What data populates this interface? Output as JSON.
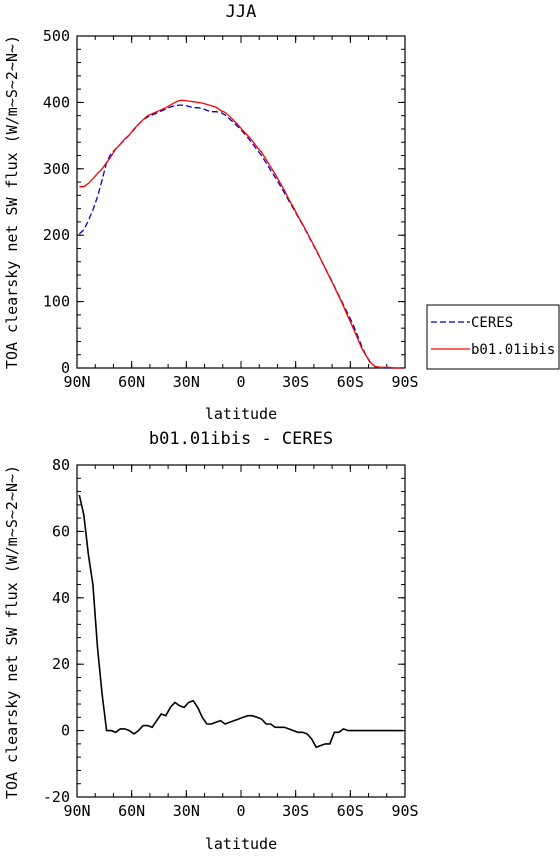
{
  "chart_data": [
    {
      "type": "line",
      "title": "JJA",
      "xlabel": "latitude",
      "ylabel": "TOA clearsky net SW flux (W/m~S~2~N~)",
      "xlim": [
        90,
        -90
      ],
      "ylim": [
        0,
        500
      ],
      "xticks": [
        {
          "value": 90,
          "label": "90N"
        },
        {
          "value": 60,
          "label": "60N"
        },
        {
          "value": 30,
          "label": "30N"
        },
        {
          "value": 0,
          "label": "0"
        },
        {
          "value": -30,
          "label": "30S"
        },
        {
          "value": -60,
          "label": "60S"
        },
        {
          "value": -90,
          "label": "90S"
        }
      ],
      "yticks": [
        0,
        100,
        200,
        300,
        400,
        500
      ],
      "legend": "right",
      "series": [
        {
          "name": "CERES",
          "color": "#0000cc",
          "dash": "dashed",
          "x": [
            88.75,
            86.25,
            83.75,
            81.25,
            78.75,
            76.25,
            73.75,
            71.25,
            68.75,
            66.25,
            63.75,
            61.25,
            58.75,
            56.25,
            53.75,
            51.25,
            48.75,
            46.25,
            43.75,
            41.25,
            38.75,
            36.25,
            33.75,
            31.25,
            28.75,
            26.25,
            23.75,
            21.25,
            18.75,
            16.25,
            13.75,
            11.25,
            8.75,
            6.25,
            3.75,
            1.25,
            -1.25,
            -3.75,
            -6.25,
            -8.75,
            -11.25,
            -13.75,
            -16.25,
            -18.75,
            -21.25,
            -23.75,
            -26.25,
            -28.75,
            -31.25,
            -33.75,
            -36.25,
            -38.75,
            -41.25,
            -43.75,
            -46.25,
            -48.75,
            -51.25,
            -53.75,
            -56.25,
            -58.75,
            -61.25,
            -63.75,
            -66.25,
            -68.75,
            -71.25,
            -73.75,
            -76.25,
            -78.75,
            -81.25,
            -83.75,
            -86.25,
            -88.75
          ],
          "values": [
            202,
            208,
            222,
            238,
            258,
            283,
            310,
            323,
            330,
            337,
            344,
            351,
            359,
            367,
            374,
            378,
            381,
            384,
            387,
            390,
            393,
            395,
            396,
            396,
            394,
            392,
            392,
            391,
            388,
            386,
            386,
            385,
            381,
            375,
            369,
            362,
            355,
            347,
            338,
            329,
            320,
            309,
            298,
            287,
            276,
            264,
            252,
            240,
            228,
            216,
            203,
            190,
            177,
            164,
            150,
            137,
            123,
            109,
            95,
            81,
            67,
            50,
            33,
            18,
            7,
            2,
            1,
            0,
            0,
            0,
            0,
            0
          ]
        },
        {
          "name": "b01.01ibis",
          "color": "#ff0000",
          "dash": "solid",
          "x": [
            88.75,
            86.25,
            83.75,
            81.25,
            78.75,
            76.25,
            73.75,
            71.25,
            68.75,
            66.25,
            63.75,
            61.25,
            58.75,
            56.25,
            53.75,
            51.25,
            48.75,
            46.25,
            43.75,
            41.25,
            38.75,
            36.25,
            33.75,
            31.25,
            28.75,
            26.25,
            23.75,
            21.25,
            18.75,
            16.25,
            13.75,
            11.25,
            8.75,
            6.25,
            3.75,
            1.25,
            -1.25,
            -3.75,
            -6.25,
            -8.75,
            -11.25,
            -13.75,
            -16.25,
            -18.75,
            -21.25,
            -23.75,
            -26.25,
            -28.75,
            -31.25,
            -33.75,
            -36.25,
            -38.75,
            -41.25,
            -43.75,
            -46.25,
            -48.75,
            -51.25,
            -53.75,
            -56.25,
            -58.75,
            -61.25,
            -63.75,
            -66.25,
            -68.75,
            -71.25,
            -73.75,
            -76.25,
            -78.75,
            -81.25,
            -83.75,
            -86.25,
            -88.75
          ],
          "values": [
            273,
            273,
            278,
            285,
            293,
            300,
            309,
            319,
            330,
            337,
            345,
            351,
            360,
            367,
            374,
            380,
            383,
            386,
            389,
            392,
            396,
            400,
            403,
            403,
            402,
            401,
            400,
            399,
            397,
            395,
            393,
            388,
            385,
            379,
            372,
            365,
            357,
            350,
            342,
            333,
            325,
            314,
            303,
            292,
            280,
            268,
            254,
            242,
            229,
            217,
            204,
            191,
            178,
            164,
            150,
            136,
            122,
            108,
            93,
            77,
            62,
            46,
            30,
            18,
            8,
            2,
            1,
            1,
            1,
            0,
            0,
            0
          ]
        }
      ]
    },
    {
      "type": "line",
      "title": "b01.01ibis - CERES",
      "xlabel": "latitude",
      "ylabel": "TOA clearsky net SW flux (W/m~S~2~N~)",
      "xlim": [
        90,
        -90
      ],
      "ylim": [
        -20,
        80
      ],
      "xticks": [
        {
          "value": 90,
          "label": "90N"
        },
        {
          "value": 60,
          "label": "60N"
        },
        {
          "value": 30,
          "label": "30N"
        },
        {
          "value": 0,
          "label": "0"
        },
        {
          "value": -30,
          "label": "30S"
        },
        {
          "value": -60,
          "label": "60S"
        },
        {
          "value": -90,
          "label": "90S"
        }
      ],
      "yticks": [
        -20,
        0,
        20,
        40,
        60,
        80
      ],
      "series": [
        {
          "color": "#000000",
          "dash": "solid",
          "x": [
            88.75,
            86.25,
            83.75,
            81.25,
            78.75,
            76.25,
            73.75,
            71.25,
            68.75,
            66.25,
            63.75,
            61.25,
            58.75,
            56.25,
            53.75,
            51.25,
            48.75,
            46.25,
            43.75,
            41.25,
            38.75,
            36.25,
            33.75,
            31.25,
            28.75,
            26.25,
            23.75,
            21.25,
            18.75,
            16.25,
            13.75,
            11.25,
            8.75,
            6.25,
            3.75,
            1.25,
            -1.25,
            -3.75,
            -6.25,
            -8.75,
            -11.25,
            -13.75,
            -16.25,
            -18.75,
            -21.25,
            -23.75,
            -26.25,
            -28.75,
            -31.25,
            -33.75,
            -36.25,
            -38.75,
            -41.25,
            -43.75,
            -46.25,
            -48.75,
            -51.25,
            -53.75,
            -56.25,
            -58.75,
            -61.25,
            -63.75,
            -66.25,
            -68.75,
            -71.25,
            -73.75,
            -76.25,
            -78.75,
            -81.25,
            -83.75,
            -86.25,
            -88.75
          ],
          "values": [
            71,
            65,
            53,
            44,
            25,
            11,
            0,
            0,
            -0.5,
            0.5,
            0.5,
            0,
            -1,
            0,
            1.5,
            1.5,
            1,
            3,
            5,
            4.5,
            7,
            8.5,
            7.5,
            7,
            8.5,
            9,
            7,
            4,
            2,
            2,
            2.5,
            3,
            2,
            2.5,
            3,
            3.5,
            4,
            4.5,
            4.5,
            4,
            3.5,
            2,
            2,
            1,
            1,
            1,
            0.5,
            0,
            -0.5,
            -0.5,
            -1,
            -2.5,
            -5,
            -4.5,
            -4,
            -4,
            -0.5,
            -0.5,
            0.5,
            0,
            0,
            0,
            0,
            0,
            0,
            0,
            0,
            0,
            0,
            0,
            0,
            0
          ]
        }
      ]
    }
  ]
}
